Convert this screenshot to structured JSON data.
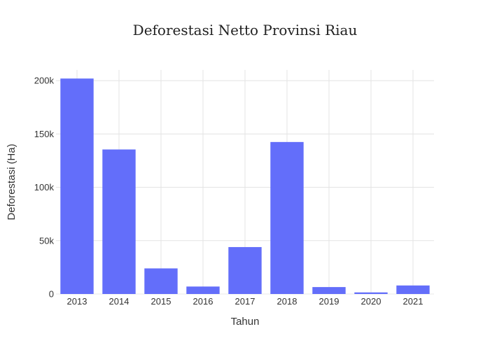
{
  "chart_data": {
    "type": "bar",
    "title": "Deforestasi Netto Provinsi Riau",
    "xlabel": "Tahun",
    "ylabel": "Deforestasi (Ha)",
    "categories": [
      "2013",
      "2014",
      "2015",
      "2016",
      "2017",
      "2018",
      "2019",
      "2020",
      "2021"
    ],
    "values": [
      202000,
      135500,
      24000,
      7000,
      44000,
      142500,
      6500,
      1500,
      8000
    ],
    "ylim": [
      0,
      210000
    ],
    "yticks": [
      0,
      50000,
      100000,
      150000,
      200000
    ],
    "ytick_labels": [
      "0",
      "50k",
      "100k",
      "150k",
      "200k"
    ],
    "grid": true,
    "colors": {
      "bar": "#636efa",
      "grid": "#e3e3e3",
      "background": "#ffffff"
    }
  }
}
